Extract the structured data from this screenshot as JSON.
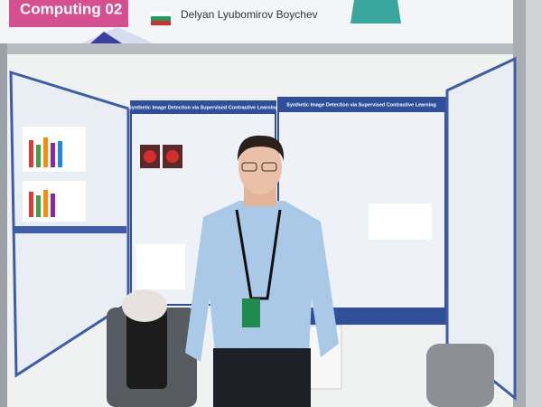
{
  "banner": {
    "category": "Computing 02",
    "name": "Delyan Lyubomirov Boychev"
  },
  "posters": [
    {
      "title": "Synthetic Image Detection via Supervised Contrastive Learning"
    },
    {
      "title": "Synthetic Image Detection via Supervised Contrastive Learning"
    }
  ]
}
